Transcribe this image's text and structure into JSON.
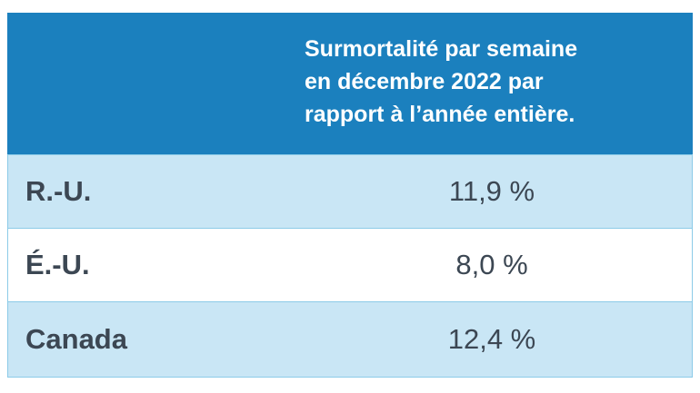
{
  "table": {
    "header": {
      "lines": [
        "Surmortalité par semaine",
        "en décembre 2022 par",
        "rapport à l’année entière."
      ]
    },
    "rows": [
      [
        "R.-U.",
        "11,9 %"
      ],
      [
        "É.-U.",
        "8,0 %"
      ],
      [
        "Canada",
        "12,4 %"
      ]
    ]
  }
}
